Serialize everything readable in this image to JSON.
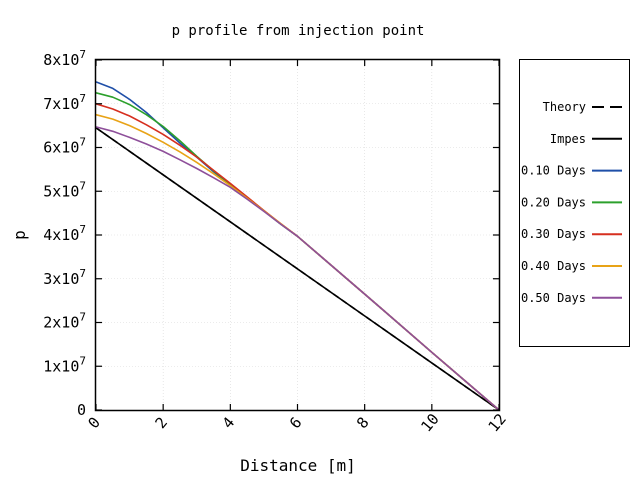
{
  "chart_data": {
    "type": "line",
    "title": "p profile from injection point",
    "xlabel": "Distance [m]",
    "ylabel": "p",
    "xlim": [
      0,
      12
    ],
    "ylim": [
      0,
      80000000
    ],
    "xticks": [
      {
        "value": 0,
        "label": "0"
      },
      {
        "value": 2,
        "label": "2"
      },
      {
        "value": 4,
        "label": "4"
      },
      {
        "value": 6,
        "label": "6"
      },
      {
        "value": 8,
        "label": "8"
      },
      {
        "value": 10,
        "label": "10"
      },
      {
        "value": 12,
        "label": "12"
      }
    ],
    "yticks": [
      {
        "value": 0,
        "mant": "0",
        "exp": ""
      },
      {
        "value": 10000000,
        "mant": "1x10",
        "exp": "7"
      },
      {
        "value": 20000000,
        "mant": "2x10",
        "exp": "7"
      },
      {
        "value": 30000000,
        "mant": "3x10",
        "exp": "7"
      },
      {
        "value": 40000000,
        "mant": "4x10",
        "exp": "7"
      },
      {
        "value": 50000000,
        "mant": "5x10",
        "exp": "7"
      },
      {
        "value": 60000000,
        "mant": "6x10",
        "exp": "7"
      },
      {
        "value": 70000000,
        "mant": "7x10",
        "exp": "7"
      },
      {
        "value": 80000000,
        "mant": "8x10",
        "exp": "7"
      }
    ],
    "grid": true,
    "legend_position": "right",
    "series": [
      {
        "name": "Theory",
        "color": "#000000",
        "dash": true,
        "x": [
          0,
          12
        ],
        "y": [
          64500000,
          0
        ]
      },
      {
        "name": "Impes",
        "color": "#000000",
        "dash": false,
        "x": [
          0,
          12
        ],
        "y": [
          64500000,
          0
        ]
      },
      {
        "name": "0.10 Days",
        "color": "#1f4fa8",
        "dash": false,
        "x": [
          0,
          0.5,
          1,
          1.5,
          2,
          2.5,
          3,
          3.5,
          4,
          4.5,
          5,
          5.5,
          6,
          8,
          10,
          12
        ],
        "y": [
          75000000,
          73500000,
          71000000,
          68000000,
          64500000,
          61000000,
          57800000,
          54500000,
          51500000,
          48500000,
          45500000,
          42500000,
          39700000,
          26500000,
          13200000,
          0
        ]
      },
      {
        "name": "0.20 Days",
        "color": "#2ca02c",
        "dash": false,
        "x": [
          0,
          0.5,
          1,
          1.5,
          2,
          2.5,
          3,
          3.5,
          4,
          4.5,
          5,
          5.5,
          6,
          8,
          10,
          12
        ],
        "y": [
          72500000,
          71500000,
          69800000,
          67500000,
          64800000,
          61500000,
          58000000,
          54700000,
          51600000,
          48500000,
          45500000,
          42500000,
          39700000,
          26500000,
          13200000,
          0
        ]
      },
      {
        "name": "0.30 Days",
        "color": "#d62f1f",
        "dash": false,
        "x": [
          0,
          0.5,
          1,
          1.5,
          2,
          2.5,
          3,
          3.5,
          4,
          4.5,
          5,
          5.5,
          6,
          8,
          10,
          12
        ],
        "y": [
          70000000,
          68800000,
          67200000,
          65200000,
          63000000,
          60500000,
          57800000,
          54800000,
          51800000,
          48700000,
          45600000,
          42600000,
          39700000,
          26500000,
          13200000,
          0
        ]
      },
      {
        "name": "0.40 Days",
        "color": "#e8a317",
        "dash": false,
        "x": [
          0,
          0.5,
          1,
          1.5,
          2,
          2.5,
          3,
          3.5,
          4,
          4.5,
          5,
          5.5,
          6,
          8,
          10,
          12
        ],
        "y": [
          67500000,
          66500000,
          65000000,
          63200000,
          61200000,
          59000000,
          56600000,
          54000000,
          51300000,
          48400000,
          45500000,
          42600000,
          39700000,
          26500000,
          13200000,
          0
        ]
      },
      {
        "name": "0.50 Days",
        "color": "#8e4f9a",
        "dash": false,
        "x": [
          0,
          0.5,
          1,
          1.5,
          2,
          2.5,
          3,
          3.5,
          4,
          4.5,
          5,
          5.5,
          6,
          8,
          10,
          12
        ],
        "y": [
          64700000,
          63700000,
          62300000,
          60800000,
          59100000,
          57200000,
          55200000,
          53100000,
          50900000,
          48200000,
          45400000,
          42500000,
          39700000,
          26500000,
          13200000,
          0
        ]
      }
    ]
  }
}
